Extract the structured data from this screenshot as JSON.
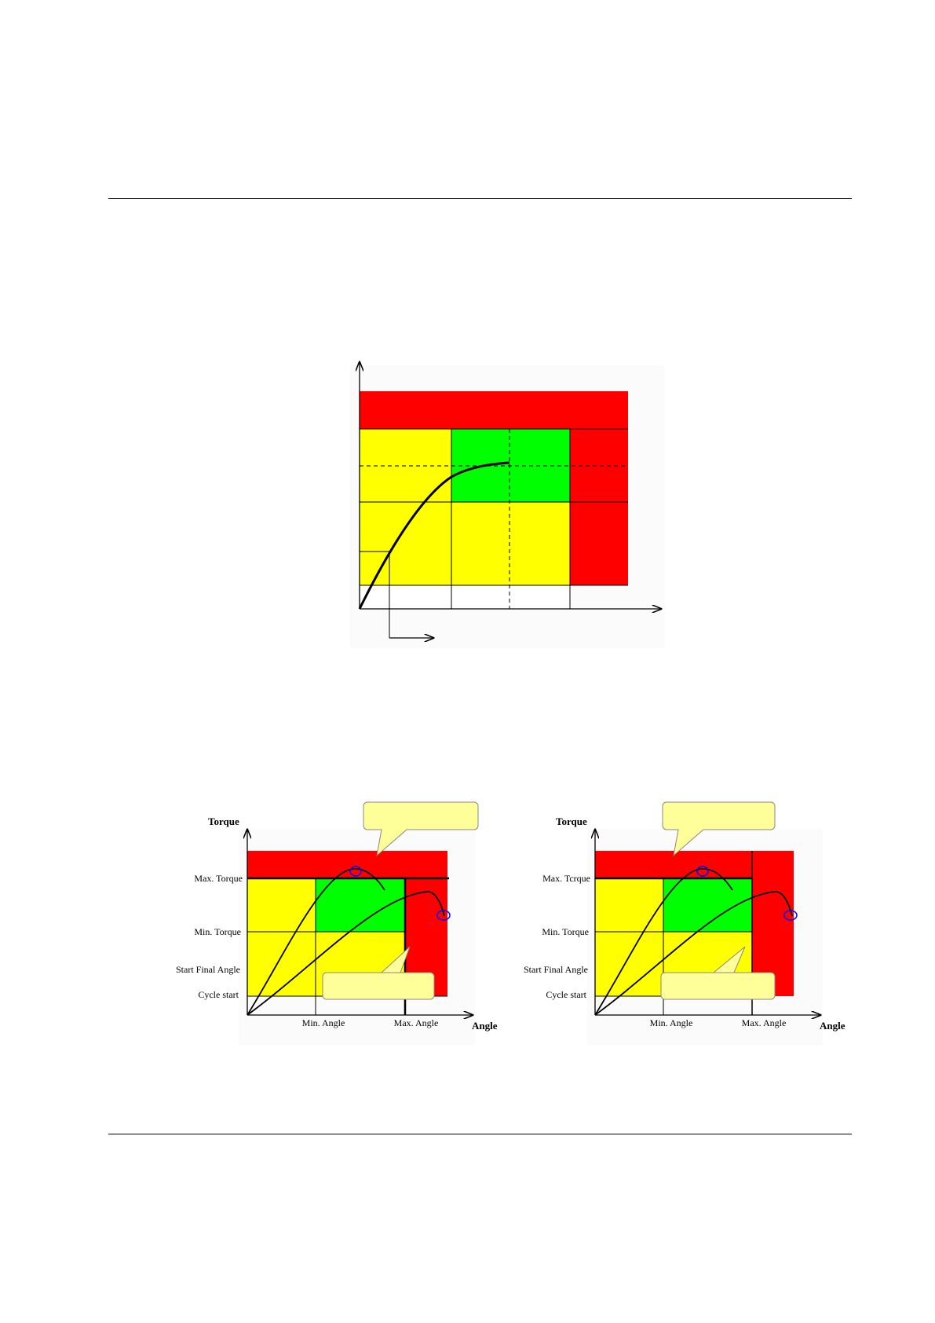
{
  "colors": {
    "red": "#ff0000",
    "yellow": "#ffff00",
    "green": "#00ff00",
    "curve": "#000000",
    "marker": "#0000ff",
    "callout": "#ffff99"
  },
  "diagram_bottom_left": {
    "axis_y_label": "Torque",
    "axis_x_label": "Angle",
    "y_labels": [
      "Max. Torque",
      "Min. Torque",
      "Start Final Angle",
      "Cycle start"
    ],
    "x_labels": [
      "Min. Angle",
      "Max. Angle"
    ]
  },
  "diagram_bottom_right": {
    "axis_y_label": "Torque",
    "axis_x_label": "Angle",
    "y_labels": [
      "Max. Tcrque",
      "Min. Torque",
      "Start Final Angle",
      "Cycle start"
    ],
    "x_labels": [
      "Min. Angle",
      "Max. Angle"
    ]
  }
}
